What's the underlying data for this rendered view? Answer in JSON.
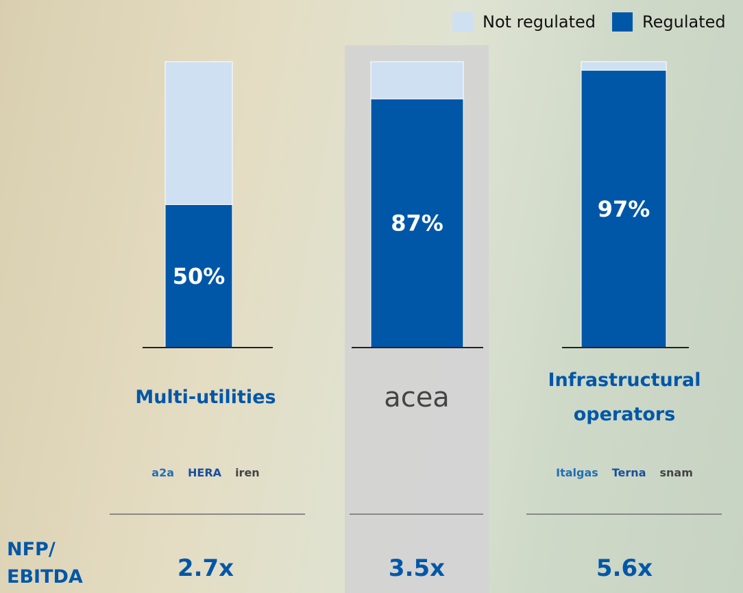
{
  "chart_data": {
    "type": "bar",
    "stacked": true,
    "categories": [
      "Multi-utilities",
      "acea",
      "Infrastructural operators"
    ],
    "logos": [
      [
        "a2a",
        "HERA",
        "iren"
      ],
      null,
      [
        "Italgas",
        "Terna",
        "snam"
      ]
    ],
    "highlight": 1,
    "ylim": [
      0,
      100
    ],
    "legend": "top-right",
    "series": [
      {
        "name": "Regulated",
        "color": "#0057a8",
        "values": [
          50,
          87,
          97
        ],
        "value_labels": [
          "50%",
          "87%",
          "97%"
        ]
      },
      {
        "name": "Not regulated",
        "color": "#cfe0f3",
        "values": [
          50,
          13,
          3
        ]
      }
    ],
    "nfp_ebitda": {
      "label": "NFP/ EBITDA",
      "values": [
        2.7,
        3.5,
        5.6
      ],
      "value_labels": [
        "2.7x",
        "3.5x",
        "5.6x"
      ]
    }
  }
}
